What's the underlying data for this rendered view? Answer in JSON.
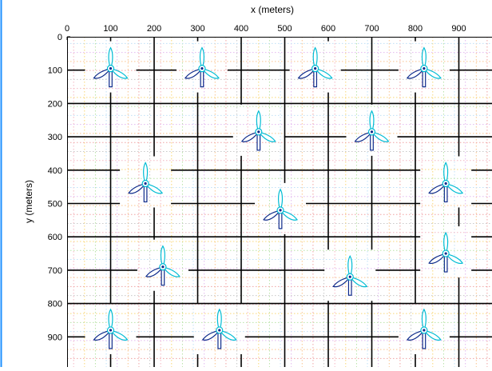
{
  "plot": {
    "xlabel": "x (meters)",
    "ylabel": "y (meters)",
    "xlim": [
      0,
      970
    ],
    "ylim": [
      0,
      970
    ],
    "x_ticks": [
      "0",
      "100",
      "200",
      "300",
      "400",
      "500",
      "600",
      "700",
      "800",
      "900"
    ],
    "y_ticks": [
      "0",
      "100",
      "200",
      "300",
      "400",
      "500",
      "600",
      "700",
      "800",
      "900"
    ],
    "y_axis_direction": "down",
    "x_axis_position": "top",
    "grid": true,
    "colors": {
      "frame": "#1e90ff",
      "grid_major": "#000000",
      "turbine_light": "#00bcd4",
      "turbine_dark": "#0d2a8a"
    }
  },
  "chart_data": {
    "type": "scatter",
    "marker": "wind-turbine-icon",
    "x": [
      100,
      310,
      570,
      820,
      440,
      700,
      180,
      870,
      490,
      220,
      870,
      650,
      100,
      350,
      820
    ],
    "y": [
      95,
      95,
      95,
      95,
      285,
      285,
      440,
      440,
      520,
      690,
      650,
      720,
      880,
      880,
      880
    ]
  }
}
